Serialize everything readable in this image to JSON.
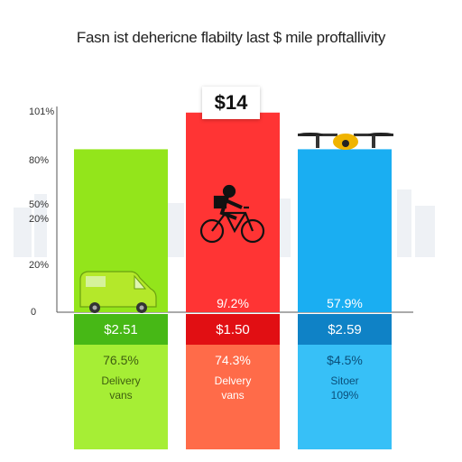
{
  "title": "Fasn ist dehericne flabilty last $ mile proftallivity",
  "badge": {
    "value": "$14"
  },
  "colors": {
    "delivery_vans": "#93e51b",
    "bike": "#ff3434",
    "drone": "#1aaef2",
    "band_green": "#47b816",
    "band_red": "#e10f13",
    "band_blue": "#0f82c6"
  },
  "chart_data": {
    "type": "bar",
    "title": "Fasn ist dehericne flabilty last $ mile proftallivity",
    "y_ticks": [
      "0",
      "20%",
      "20%",
      "50%",
      "80%",
      "101%"
    ],
    "ylim": [
      0,
      101
    ],
    "categories": [
      "Delivery vans",
      "Delivery vans",
      "Sitoer 109%"
    ],
    "values": [
      80,
      98,
      80
    ],
    "bars": [
      {
        "icon": "van-icon",
        "band_value": "$2.51",
        "upper_label": "",
        "lower_pct": "76.5%",
        "lower_line1": "Delivery",
        "lower_line2": "vans"
      },
      {
        "icon": "bicycle-icon",
        "band_value": "$1.50",
        "upper_label": "9/.2%",
        "lower_pct": "74.3%",
        "lower_line1": "Delvery",
        "lower_line2": "vans"
      },
      {
        "icon": "drone-icon",
        "band_value": "$2.59",
        "upper_label": "57.9%",
        "lower_pct": "$4.5%",
        "lower_line1": "Sitoer",
        "lower_line2": "109%"
      }
    ],
    "grid": false,
    "legend": "none"
  }
}
